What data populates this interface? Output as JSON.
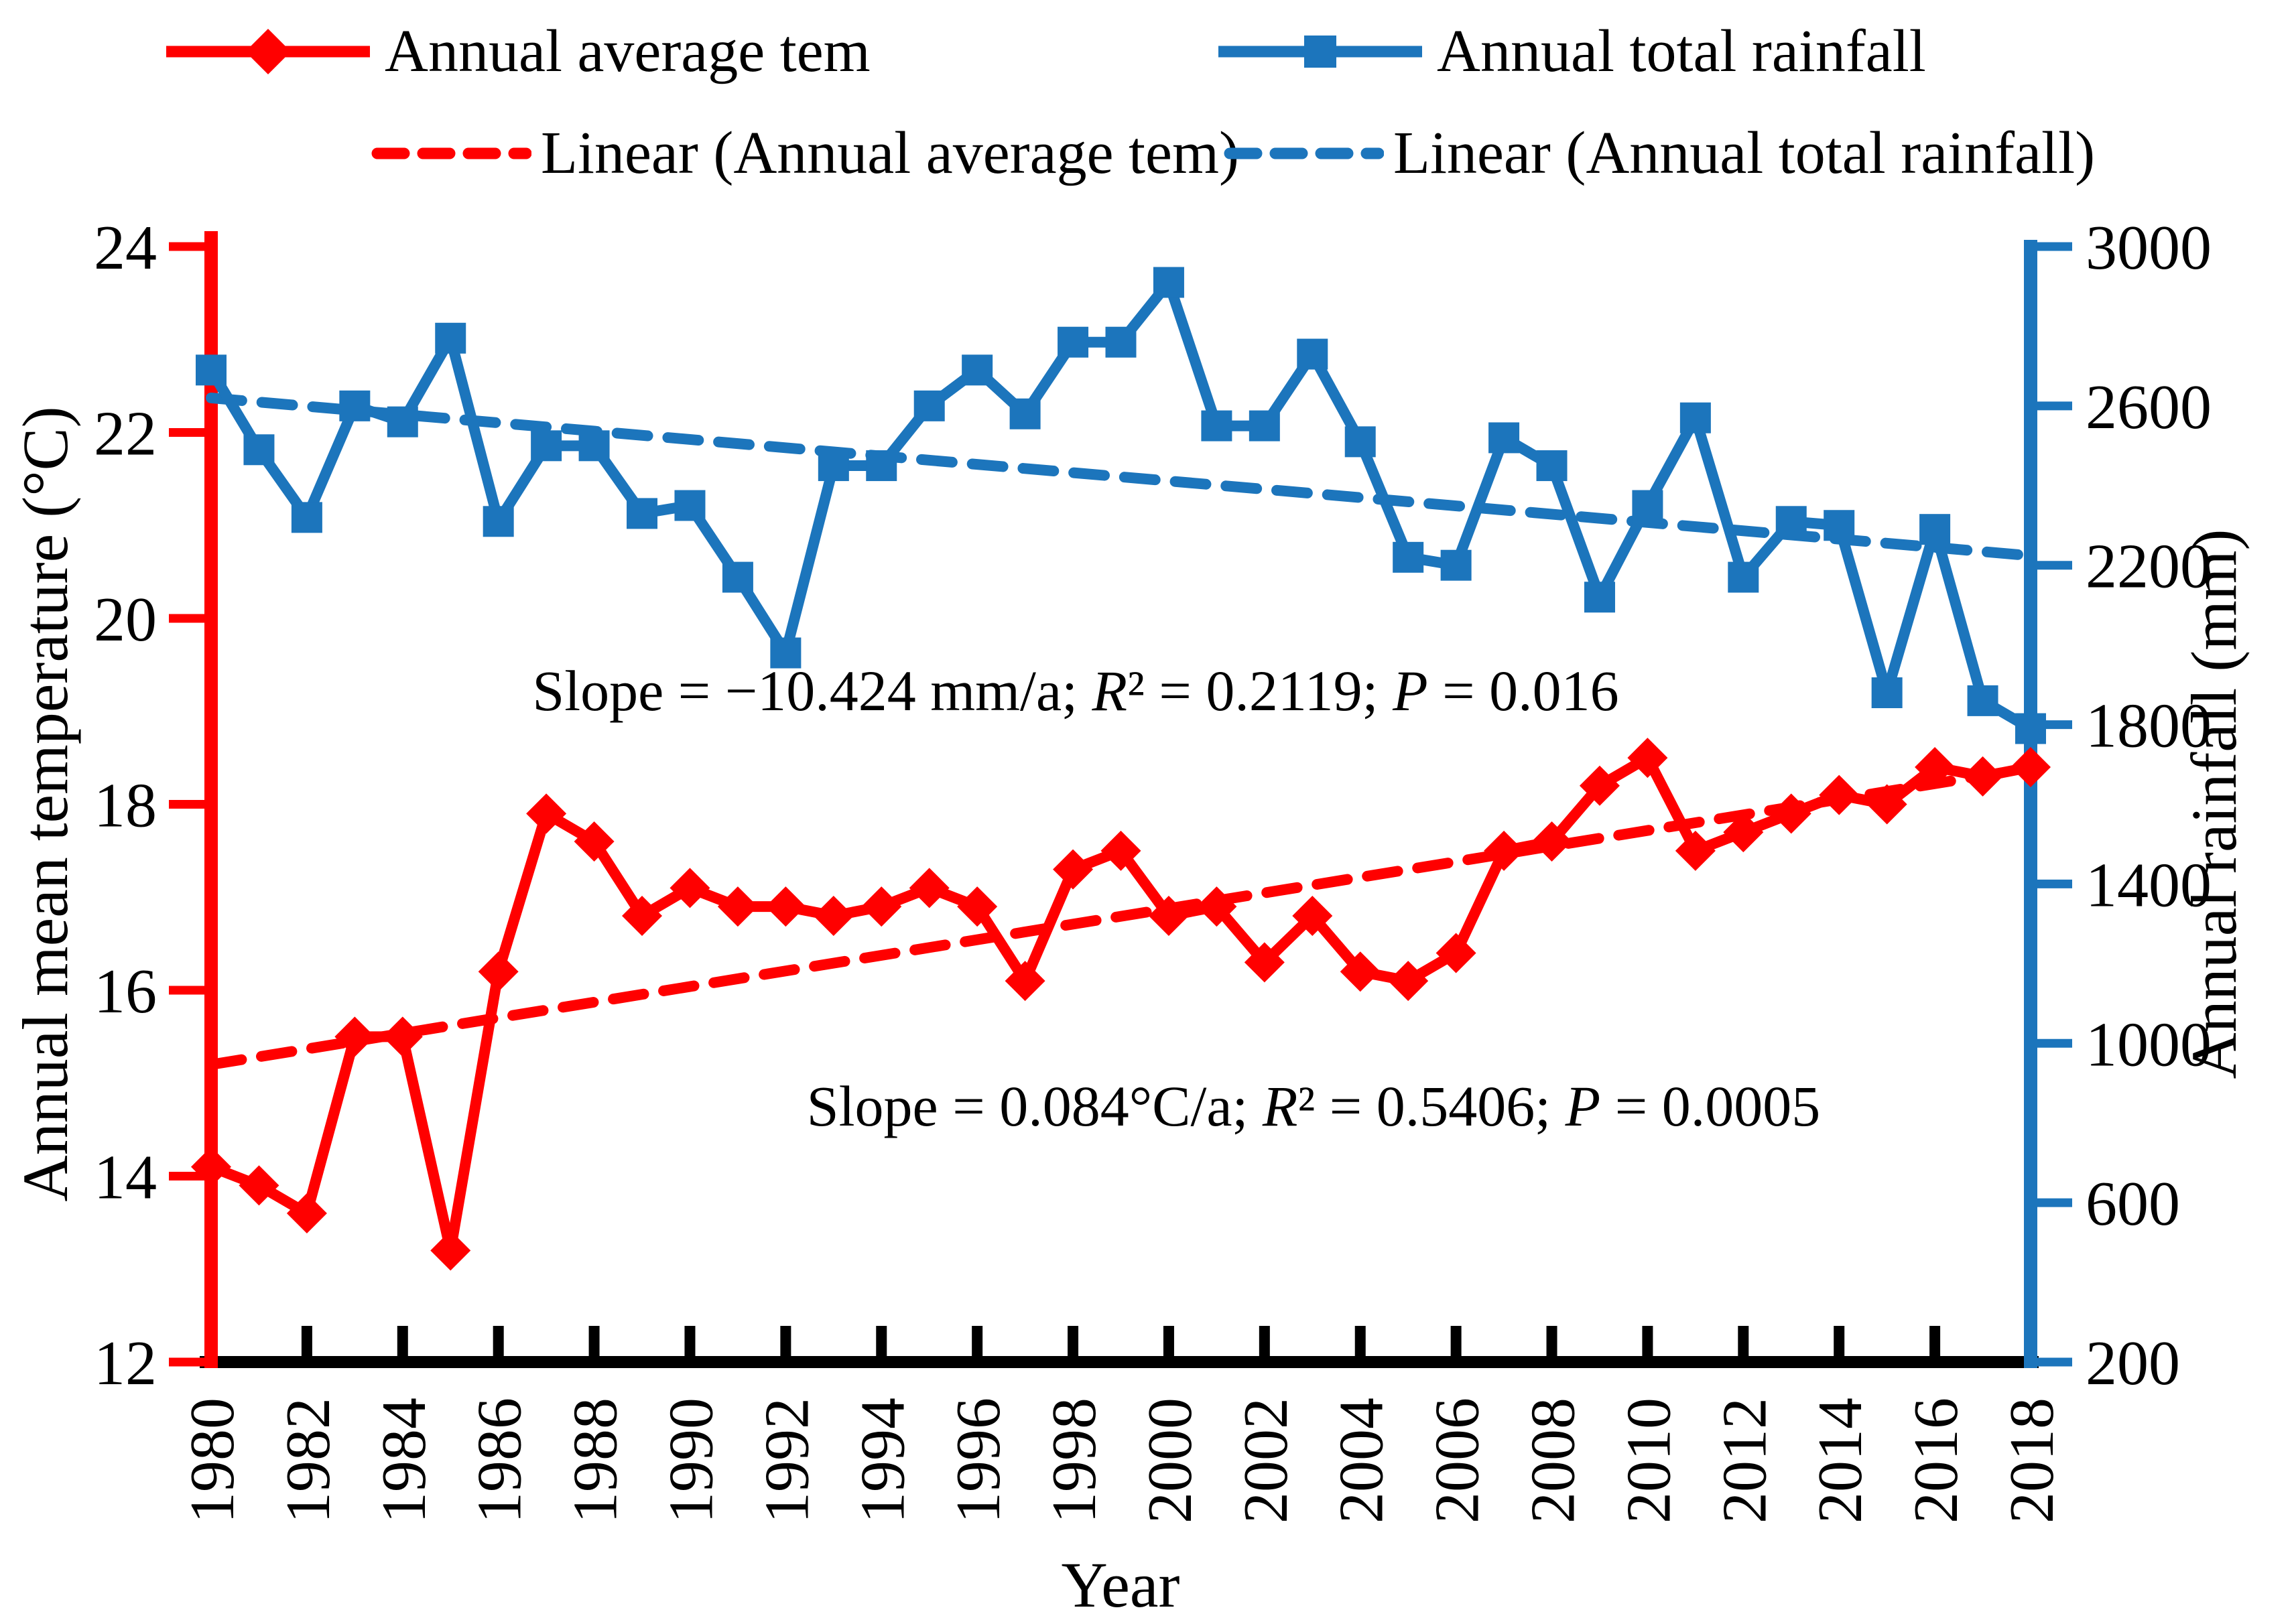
{
  "legend": {
    "series_temperature": "Annual average tem",
    "series_rainfall": "Annual total rainfall",
    "trend_temperature": "Linear (Annual average tem)",
    "trend_rainfall": "Linear (Annual total rainfall)"
  },
  "colors": {
    "temperature": "#FF0000",
    "rainfall": "#1C75BC",
    "axis": "#000000"
  },
  "chart_data": {
    "type": "line",
    "x": [
      1980,
      1981,
      1982,
      1983,
      1984,
      1985,
      1986,
      1987,
      1988,
      1989,
      1990,
      1991,
      1992,
      1993,
      1994,
      1995,
      1996,
      1997,
      1998,
      1999,
      2000,
      2001,
      2002,
      2003,
      2004,
      2005,
      2006,
      2007,
      2008,
      2009,
      2010,
      2011,
      2012,
      2013,
      2014,
      2015,
      2016,
      2017,
      2018
    ],
    "series": [
      {
        "name": "Annual average tem",
        "axis": "left",
        "color": "#FF0000",
        "marker": "diamond",
        "values": [
          14.1,
          13.9,
          13.6,
          15.5,
          15.5,
          13.2,
          16.2,
          17.9,
          17.6,
          16.8,
          17.1,
          16.9,
          16.9,
          16.8,
          16.9,
          17.1,
          16.9,
          16.1,
          17.3,
          17.5,
          16.8,
          16.9,
          16.3,
          16.8,
          16.2,
          16.1,
          16.4,
          17.5,
          17.6,
          18.2,
          18.5,
          17.5,
          17.7,
          17.9,
          18.1,
          18.0,
          18.4,
          18.3,
          18.4
        ]
      },
      {
        "name": "Annual total rainfall",
        "axis": "right",
        "color": "#1C75BC",
        "marker": "square",
        "values": [
          2690,
          2490,
          2320,
          2600,
          2560,
          2770,
          2310,
          2500,
          2500,
          2330,
          2350,
          2170,
          1980,
          2450,
          2450,
          2600,
          2690,
          2580,
          2760,
          2760,
          2910,
          2550,
          2550,
          2730,
          2510,
          2220,
          2200,
          2520,
          2450,
          2120,
          2350,
          2570,
          2170,
          2310,
          2300,
          1880,
          2290,
          1860,
          1790
        ]
      }
    ],
    "trendlines": [
      {
        "name": "Linear (Annual average tem)",
        "axis": "left",
        "color": "#FF0000",
        "x0": 1980,
        "y0": 15.2,
        "x1": 2018,
        "y1": 18.39
      },
      {
        "name": "Linear (Annual total rainfall)",
        "axis": "right",
        "color": "#1C75BC",
        "x0": 1980,
        "y0": 2620,
        "x1": 2018,
        "y1": 2224
      }
    ],
    "left_axis": {
      "label": "Annual mean temperature (°C)",
      "min": 12,
      "max": 24,
      "ticks": [
        12,
        14,
        16,
        18,
        20,
        22,
        24
      ],
      "color": "#FF0000"
    },
    "right_axis": {
      "label": "Annual rainfall (mm)",
      "min": 200,
      "max": 3000,
      "ticks": [
        200,
        600,
        1000,
        1400,
        1800,
        2200,
        2600,
        3000
      ],
      "color": "#1C75BC"
    },
    "x_axis": {
      "label": "Year",
      "tick_years": [
        1980,
        1982,
        1984,
        1986,
        1988,
        1990,
        1992,
        1994,
        1996,
        1998,
        2000,
        2002,
        2004,
        2006,
        2008,
        2010,
        2012,
        2014,
        2016,
        2018
      ],
      "color": "#000000"
    },
    "annotations": [
      {
        "id": "rainfall-stats",
        "x": 1605,
        "y": 1060,
        "parts": [
          {
            "t": "Slope = −10.424 mm/a; "
          },
          {
            "t": "R",
            "i": true
          },
          {
            "t": "² = 0.2119; "
          },
          {
            "t": "P",
            "i": true
          },
          {
            "t": " = 0.016"
          }
        ]
      },
      {
        "id": "temperature-stats",
        "x": 1960,
        "y": 1680,
        "parts": [
          {
            "t": "Slope = 0.084°C/a; "
          },
          {
            "t": "R",
            "i": true
          },
          {
            "t": "² = 0.5406;  "
          },
          {
            "t": "P",
            "i": true
          },
          {
            "t": " = 0.0005"
          }
        ]
      }
    ],
    "grid": false,
    "legend_position": "top"
  }
}
